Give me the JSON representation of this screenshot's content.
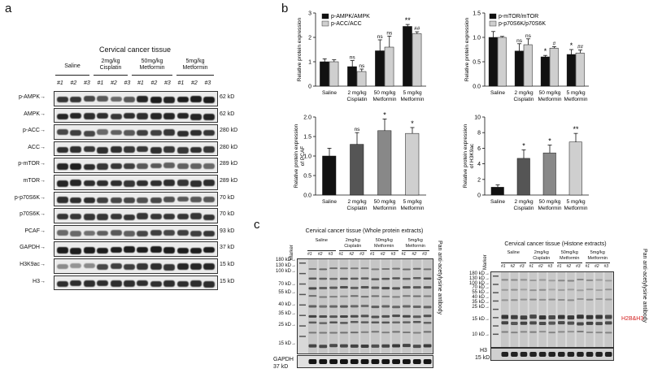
{
  "panel_labels": {
    "a": "a",
    "b": "b",
    "c": "c"
  },
  "panel_a": {
    "title": "Cervical cancer tissue",
    "groups": [
      "Saline",
      "2mg/kg\nCisplatin",
      "50mg/kg\nMetformin",
      "5mg/kg\nMetformin"
    ],
    "replicates": [
      "#1",
      "#2",
      "#3"
    ],
    "rows": [
      {
        "label": "p-AMPK",
        "kd": "62 kD"
      },
      {
        "label": "AMPK",
        "kd": "62 kD"
      },
      {
        "label": "p-ACC",
        "kd": "280 kD"
      },
      {
        "label": "ACC",
        "kd": "280 kD"
      },
      {
        "label": "p-mTOR",
        "kd": "289 kD"
      },
      {
        "label": "mTOR",
        "kd": "289 kD"
      },
      {
        "label": "p-p70S6K",
        "kd": "70 kD"
      },
      {
        "label": "p70S6K",
        "kd": "70 kD"
      },
      {
        "label": "PCAF",
        "kd": "93 kD"
      },
      {
        "label": "GAPDH",
        "kd": "37 kD"
      },
      {
        "label": "H3K9ac",
        "kd": "15 kD"
      },
      {
        "label": "H3",
        "kd": "15 kD"
      }
    ]
  },
  "chart_data": [
    {
      "type": "bar",
      "categories": [
        "Saline",
        "2 mg/kg\nCisplatin",
        "50 mg/kg\nMetformin",
        "5 mg/kg\nMetformin"
      ],
      "ylabel": "Relative protein expression",
      "ylim": [
        0,
        3
      ],
      "yticks": [
        "0",
        "1",
        "2",
        "3"
      ],
      "series": [
        {
          "name": "p-AMPK/AMPK",
          "color": "#111111",
          "values": [
            1.0,
            0.8,
            1.45,
            2.45
          ],
          "errors": [
            0.12,
            0.25,
            0.45,
            0.08
          ],
          "marks": [
            "",
            "ns",
            "ns",
            "**"
          ]
        },
        {
          "name": "p-ACC/ACC",
          "color": "#cfcfcf",
          "values": [
            1.0,
            0.6,
            1.6,
            2.15
          ],
          "errors": [
            0.08,
            0.1,
            0.45,
            0.08
          ],
          "marks": [
            "",
            "ns",
            "ns",
            "##"
          ]
        }
      ]
    },
    {
      "type": "bar",
      "categories": [
        "Saline",
        "2 mg/kg\nCisplatin",
        "50 mg/kg\nMetformin",
        "5 mg/kg\nMetformin"
      ],
      "ylabel": "Relative protein expression",
      "ylim": [
        0,
        1.5
      ],
      "yticks": [
        "0.0",
        "0.5",
        "1.0",
        "1.5"
      ],
      "series": [
        {
          "name": "p-mTOR/mTOR",
          "color": "#111111",
          "values": [
            1.0,
            0.72,
            0.6,
            0.65
          ],
          "errors": [
            0.12,
            0.15,
            0.03,
            0.1
          ],
          "marks": [
            "",
            "ns",
            "*",
            "*"
          ]
        },
        {
          "name": "p-p70S6K/p70S6K",
          "color": "#cfcfcf",
          "values": [
            1.0,
            0.85,
            0.78,
            0.68
          ],
          "errors": [
            0.02,
            0.12,
            0.03,
            0.06
          ],
          "marks": [
            "",
            "ns",
            "#",
            "##"
          ]
        }
      ]
    },
    {
      "type": "bar",
      "categories": [
        "Saline",
        "2 mg/kg\nCisplatin",
        "50 mg/kg\nMetformin",
        "5 mg/kg\nMetformin"
      ],
      "ylabel": "Relative protein expression\nof PCAF",
      "ylim": [
        0,
        2.0
      ],
      "yticks": [
        "0.0",
        "0.5",
        "1.0",
        "1.5",
        "2.0"
      ],
      "series": [
        {
          "name": "",
          "colors": [
            "#111111",
            "#555555",
            "#888888",
            "#cfcfcf"
          ],
          "values": [
            1.0,
            1.3,
            1.65,
            1.58
          ],
          "errors": [
            0.2,
            0.3,
            0.3,
            0.15
          ],
          "marks": [
            "",
            "ns",
            "*",
            "*"
          ]
        }
      ]
    },
    {
      "type": "bar",
      "categories": [
        "Saline",
        "2 mg/kg\nCisplatin",
        "50 mg/kg\nMetformin",
        "5 mg/kg\nMetformin"
      ],
      "ylabel": "Relative protein expression\nof H3K9ac",
      "ylim": [
        0,
        10
      ],
      "yticks": [
        "0",
        "2",
        "4",
        "6",
        "8",
        "10"
      ],
      "series": [
        {
          "name": "",
          "colors": [
            "#111111",
            "#555555",
            "#888888",
            "#cfcfcf"
          ],
          "values": [
            1.0,
            4.7,
            5.4,
            6.8
          ],
          "errors": [
            0.3,
            1.1,
            1.0,
            1.1
          ],
          "marks": [
            "",
            "*",
            "*",
            "**"
          ]
        }
      ]
    }
  ],
  "panel_c_left": {
    "title": "Cervical cancer tissue (Whole protein extracts)",
    "marker": "Marker",
    "groups": [
      "Saline",
      "2mg/kg\nCisplatin",
      "50mg/kg\nMetformin",
      "5mg/kg\nMetformin"
    ],
    "replicates": [
      "#1",
      "#2",
      "#3"
    ],
    "ladder": [
      "180 kD",
      "130 kD",
      "100 kD",
      "70 kD",
      "55 kD",
      "40 kD",
      "35 kD",
      "25 kD",
      "15 kD"
    ],
    "side_label": "Pan anti-acetylysine antibody",
    "loading": "GAPDH",
    "loading_kd": "37 kD"
  },
  "panel_c_right": {
    "title": "Cervical cancer tissue (Histone extracts)",
    "marker": "Marker",
    "groups": [
      "Saline",
      "2mg/kg\nCisplatin",
      "50mg/kg\nMetformin",
      "5mg/kg\nMetformin"
    ],
    "replicates": [
      "#1",
      "#2",
      "#3"
    ],
    "ladder": [
      "180 kD",
      "130 kD",
      "100 kD",
      "70 kD",
      "55 kD",
      "40 kD",
      "35 kD",
      "25 kD",
      "15 kD",
      "10 kD"
    ],
    "side_label": "Pan anti-acetylysine antibody",
    "annotation": "H2B&H3",
    "annotation_color": "#d42020",
    "loading": "H3",
    "loading_kd": "15 kD"
  }
}
